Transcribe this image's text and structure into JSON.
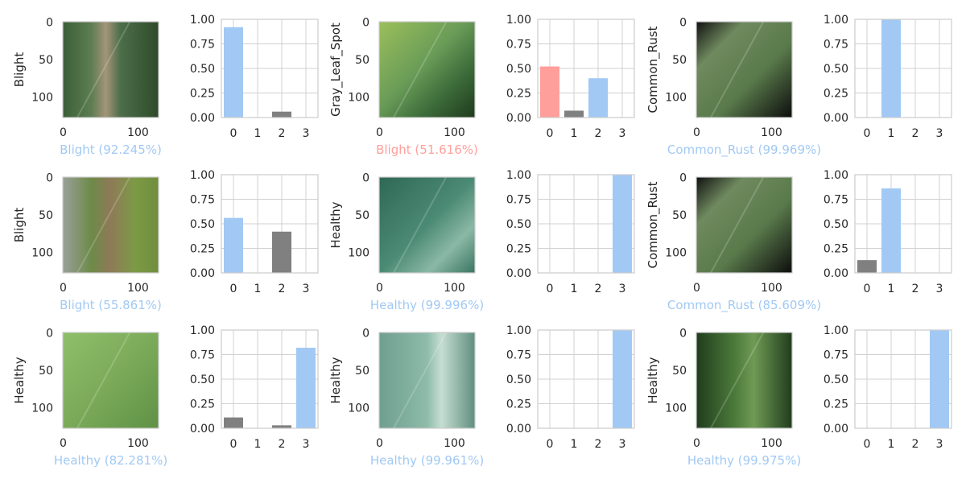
{
  "colors": {
    "correct": "#a1c9f4",
    "wrong": "#ff9f9b",
    "other": "#808080",
    "caption_correct": "#a1c9f4",
    "caption_wrong": "#ff9f9b"
  },
  "image_axis": {
    "yticks": [
      "0",
      "50",
      "100"
    ],
    "xticks": [
      "0",
      "100"
    ]
  },
  "bar_axis": {
    "yticks": [
      "0.00",
      "0.25",
      "0.50",
      "0.75",
      "1.00"
    ],
    "xticks": [
      "0",
      "1",
      "2",
      "3"
    ]
  },
  "chart_data": [
    {
      "type": "bar",
      "true_label": "Blight",
      "caption": "Blight (92.245%)",
      "correct": true,
      "predicted": 0,
      "image": "corn-leaf-blight",
      "categories": [
        "0",
        "1",
        "2",
        "3"
      ],
      "values": [
        0.92,
        0.0,
        0.06,
        0.0
      ],
      "ylim": [
        0,
        1
      ],
      "grid": true
    },
    {
      "type": "bar",
      "true_label": "Gray_Leaf_Spot",
      "caption": "Blight (51.616%)",
      "correct": false,
      "predicted": 0,
      "true_index": 2,
      "image": "corn-leaf-green",
      "categories": [
        "0",
        "1",
        "2",
        "3"
      ],
      "values": [
        0.52,
        0.07,
        0.4,
        0.0
      ],
      "ylim": [
        0,
        1
      ],
      "grid": true
    },
    {
      "type": "bar",
      "true_label": "Common_Rust",
      "caption": "Common_Rust (99.969%)",
      "correct": true,
      "predicted": 1,
      "image": "corn-leaf-rust-dark",
      "categories": [
        "0",
        "1",
        "2",
        "3"
      ],
      "values": [
        0.0,
        1.0,
        0.0,
        0.0
      ],
      "ylim": [
        0,
        1
      ],
      "grid": true
    },
    {
      "type": "bar",
      "true_label": "Blight",
      "caption": "Blight (55.861%)",
      "correct": true,
      "predicted": 0,
      "image": "corn-leaf-blight-light",
      "categories": [
        "0",
        "1",
        "2",
        "3"
      ],
      "values": [
        0.56,
        0.0,
        0.42,
        0.0
      ],
      "ylim": [
        0,
        1
      ],
      "grid": true
    },
    {
      "type": "bar",
      "true_label": "Healthy",
      "caption": "Healthy (99.996%)",
      "correct": true,
      "predicted": 3,
      "image": "corn-leaf-healthy-teal",
      "categories": [
        "0",
        "1",
        "2",
        "3"
      ],
      "values": [
        0.0,
        0.0,
        0.0,
        1.0
      ],
      "ylim": [
        0,
        1
      ],
      "grid": true
    },
    {
      "type": "bar",
      "true_label": "Common_Rust",
      "caption": "Common_Rust (85.609%)",
      "correct": true,
      "predicted": 1,
      "image": "corn-leaf-rust-dark",
      "categories": [
        "0",
        "1",
        "2",
        "3"
      ],
      "values": [
        0.13,
        0.86,
        0.0,
        0.0
      ],
      "ylim": [
        0,
        1
      ],
      "grid": true
    },
    {
      "type": "bar",
      "true_label": "Healthy",
      "caption": "Healthy (82.281%)",
      "correct": true,
      "predicted": 3,
      "image": "corn-leaf-healthy-light",
      "categories": [
        "0",
        "1",
        "2",
        "3"
      ],
      "values": [
        0.11,
        0.0,
        0.03,
        0.82
      ],
      "ylim": [
        0,
        1
      ],
      "grid": true
    },
    {
      "type": "bar",
      "true_label": "Healthy",
      "caption": "Healthy (99.961%)",
      "correct": true,
      "predicted": 3,
      "image": "corn-leaf-healthy-pale",
      "categories": [
        "0",
        "1",
        "2",
        "3"
      ],
      "values": [
        0.0,
        0.0,
        0.0,
        1.0
      ],
      "ylim": [
        0,
        1
      ],
      "grid": true
    },
    {
      "type": "bar",
      "true_label": "Healthy",
      "caption": "Healthy (99.975%)",
      "correct": true,
      "predicted": 3,
      "image": "corn-leaf-healthy-dark",
      "categories": [
        "0",
        "1",
        "2",
        "3"
      ],
      "values": [
        0.0,
        0.0,
        0.0,
        1.0
      ],
      "ylim": [
        0,
        1
      ],
      "grid": true
    }
  ]
}
